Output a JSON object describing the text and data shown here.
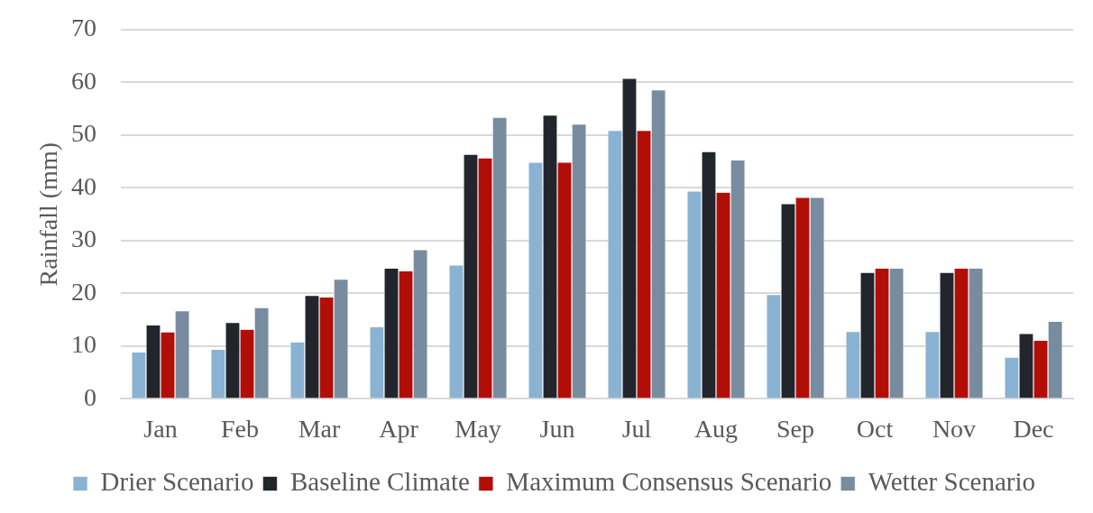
{
  "chart_data": {
    "type": "bar",
    "categories": [
      "Jan",
      "Feb",
      "Mar",
      "Apr",
      "May",
      "Jun",
      "Jul",
      "Aug",
      "Sep",
      "Oct",
      "Nov",
      "Dec"
    ],
    "series": [
      {
        "name": "Drier Scenario",
        "color": "#8ab2d2",
        "values": [
          8.9,
          9.4,
          10.8,
          13.7,
          25.4,
          44.9,
          50.9,
          39.4,
          19.8,
          12.8,
          12.8,
          7.9
        ]
      },
      {
        "name": "Baseline Climate",
        "color": "#22262c",
        "values": [
          14.0,
          14.5,
          19.6,
          24.8,
          46.4,
          53.8,
          60.8,
          46.9,
          37.0,
          24.0,
          24.0,
          12.4
        ]
      },
      {
        "name": "Maximum Consensus Scenario",
        "color": "#b20e08",
        "values": [
          12.7,
          13.2,
          19.3,
          24.3,
          45.7,
          44.9,
          50.9,
          39.2,
          38.2,
          24.8,
          24.8,
          11.1
        ]
      },
      {
        "name": "Wetter Scenario",
        "color": "#788ca0",
        "values": [
          16.7,
          17.3,
          22.7,
          28.3,
          53.4,
          52.1,
          58.6,
          45.3,
          38.2,
          24.8,
          24.8,
          14.7
        ]
      }
    ],
    "ylabel": "Rainfall (mm)",
    "ylim": [
      0,
      70
    ],
    "yticks": [
      0,
      10,
      20,
      30,
      40,
      50,
      60,
      70
    ],
    "grid": "y",
    "legend": "bottom"
  }
}
